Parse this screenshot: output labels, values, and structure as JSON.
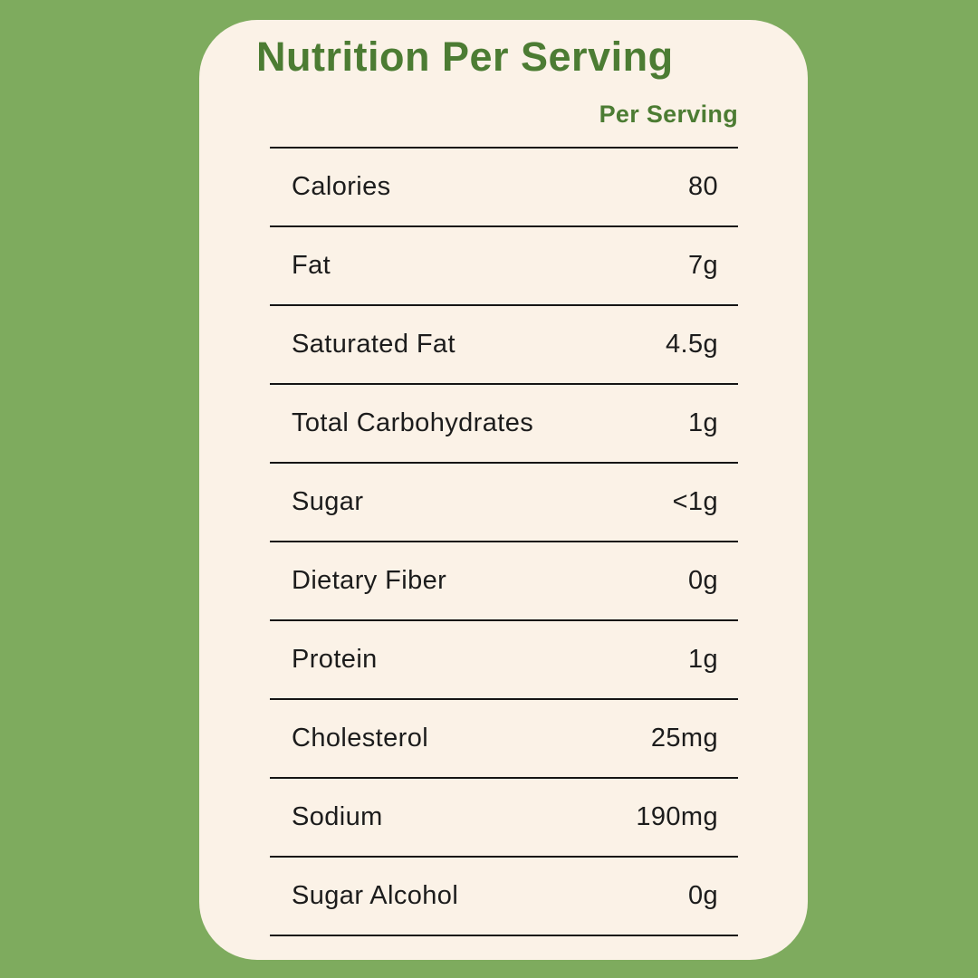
{
  "page": {
    "background_color": "#7EAB5E",
    "card_color": "#FBF2E7",
    "accent_color": "#4C7C33",
    "text_color": "#1C1C1C",
    "rule_color": "#151515"
  },
  "header": {
    "title": "Nutrition Per Serving",
    "column_label": "Per Serving"
  },
  "table": {
    "rows": [
      {
        "label": "Calories",
        "value": "80"
      },
      {
        "label": "Fat",
        "value": "7g"
      },
      {
        "label": "Saturated Fat",
        "value": "4.5g"
      },
      {
        "label": "Total Carbohydrates",
        "value": "1g"
      },
      {
        "label": "Sugar",
        "value": "<1g"
      },
      {
        "label": "Dietary Fiber",
        "value": "0g"
      },
      {
        "label": "Protein",
        "value": "1g"
      },
      {
        "label": "Cholesterol",
        "value": "25mg"
      },
      {
        "label": "Sodium",
        "value": "190mg"
      },
      {
        "label": "Sugar Alcohol",
        "value": "0g"
      }
    ]
  }
}
